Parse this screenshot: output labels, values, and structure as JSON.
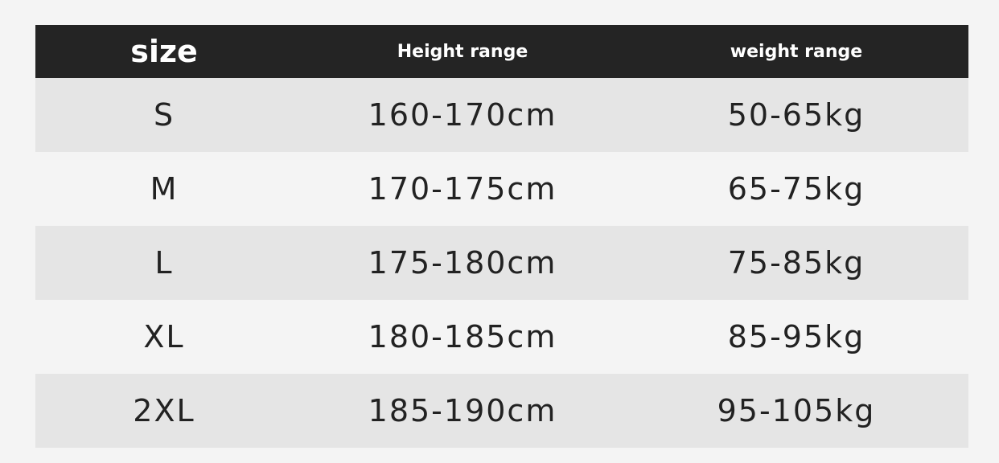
{
  "table": {
    "headers": [
      "size",
      "Height range",
      "weight range"
    ],
    "rows": [
      [
        "S",
        "160-170cm",
        "50-65kg"
      ],
      [
        "M",
        "170-175cm",
        "65-75kg"
      ],
      [
        "L",
        "175-180cm",
        "75-85kg"
      ],
      [
        "XL",
        "180-185cm",
        "85-95kg"
      ],
      [
        "2XL",
        "185-190cm",
        "95-105kg"
      ]
    ]
  },
  "colors": {
    "header_bg": "#242424",
    "header_text": "#ffffff",
    "row_alt": "#e5e5e5",
    "row_plain": "#f4f4f4"
  }
}
